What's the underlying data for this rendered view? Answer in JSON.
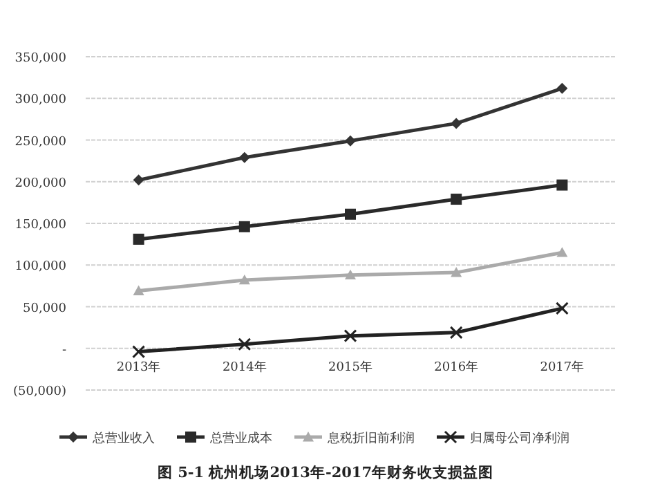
{
  "chart_data": {
    "type": "line",
    "title": "图 5-1 杭州机场2013年-2017年财务收支损益图",
    "categories": [
      "2013年",
      "2014年",
      "2015年",
      "2016年",
      "2017年"
    ],
    "series": [
      {
        "name": "总营业收入",
        "color": "#333333",
        "marker": "diamond",
        "values": [
          202000,
          229000,
          249000,
          270000,
          312000
        ]
      },
      {
        "name": "总营业成本",
        "color": "#2a2a2a",
        "marker": "square",
        "values": [
          131000,
          146000,
          161000,
          179000,
          196000
        ]
      },
      {
        "name": "息税折旧前利润",
        "color": "#aaaaaa",
        "marker": "triangle",
        "values": [
          69000,
          82000,
          88000,
          91000,
          115000
        ]
      },
      {
        "name": "归属母公司净利润",
        "color": "#222222",
        "marker": "cross",
        "values": [
          -4000,
          5000,
          15000,
          19000,
          48000
        ]
      }
    ],
    "ylim": [
      -50000,
      350000
    ],
    "yticks": [
      {
        "value": -50000,
        "label": "(50,000)"
      },
      {
        "value": 0,
        "label": "-"
      },
      {
        "value": 50000,
        "label": "50,000"
      },
      {
        "value": 100000,
        "label": "100,000"
      },
      {
        "value": 150000,
        "label": "150,000"
      },
      {
        "value": 200000,
        "label": "200,000"
      },
      {
        "value": 250000,
        "label": "250,000"
      },
      {
        "value": 300000,
        "label": "300,000"
      },
      {
        "value": 350000,
        "label": "350,000"
      }
    ],
    "grid": "y",
    "legend": "bottom",
    "line_style": "solid"
  }
}
